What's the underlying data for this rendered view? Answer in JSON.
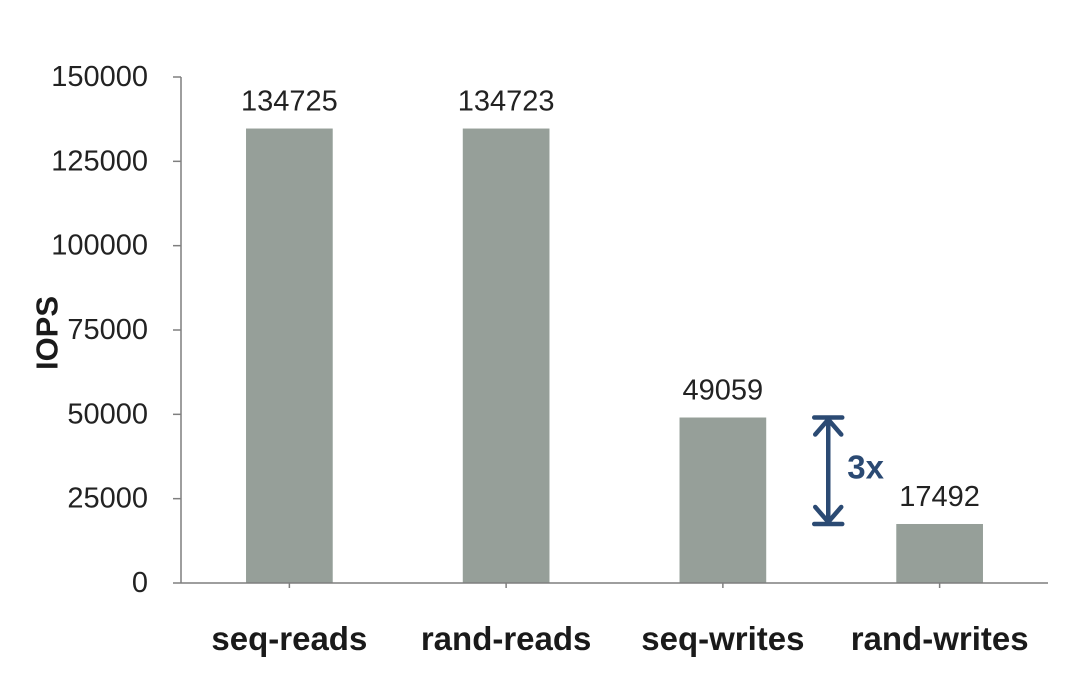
{
  "chart_data": {
    "type": "bar",
    "title": "",
    "xlabel": "",
    "ylabel": "IOPS",
    "categories": [
      "seq-reads",
      "rand-reads",
      "seq-writes",
      "rand-writes"
    ],
    "values": [
      134725,
      134723,
      49059,
      17492
    ],
    "data_labels": [
      "134725",
      "134723",
      "49059",
      "17492"
    ],
    "ylim": [
      0,
      150000
    ],
    "yticks": [
      0,
      25000,
      50000,
      75000,
      100000,
      125000,
      150000
    ],
    "ytick_labels": [
      "0",
      "25000",
      "50000",
      "75000",
      "100000",
      "125000",
      "150000"
    ],
    "grid": false,
    "legend": "none",
    "bar_color": "#969f99",
    "axis_color": "#7f7f7f",
    "annotation": {
      "text": "3x",
      "type": "double-arrow",
      "from_value": 49059,
      "to_value": 17492,
      "color": "#2b4a73"
    }
  }
}
